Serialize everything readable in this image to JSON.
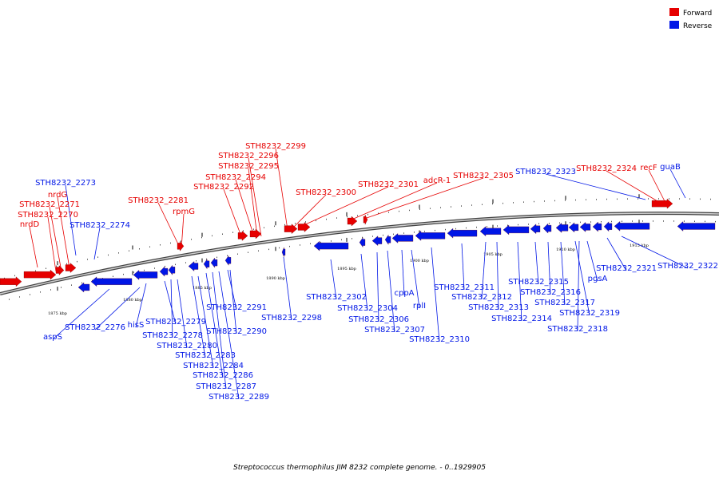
{
  "legend": {
    "forward_label": "Forward",
    "reverse_label": "Reverse",
    "forward_color": "#e60000",
    "reverse_color": "#0016e6"
  },
  "caption": "Streptococcus thermophilus JIM 8232 complete genome. - 0..1929905",
  "ticks": [
    "1875 kbp",
    "1880 kbp",
    "1885 kbp",
    "1890 kbp",
    "1895 kbp",
    "1900 kbp",
    "1905 kbp",
    "1910 kbp",
    "1915 kbp"
  ],
  "forward_genes": [
    "nrdD",
    "STH8232_2270",
    "STH8232_2271",
    "nrdG",
    "STH8232_2281",
    "rpmG",
    "STH8232_2292",
    "STH8232_2294",
    "STH8232_2295",
    "STH8232_2296",
    "STH8232_2299",
    "STH8232_2300",
    "STH8232_2301",
    "adcR-1",
    "STH8232_2305",
    "STH8232_2324",
    "recF"
  ],
  "reverse_genes": [
    "STH8232_2273",
    "STH8232_2274",
    "aspS",
    "STH8232_2276",
    "hisS",
    "STH8232_2279",
    "STH8232_2278",
    "STH8232_2280",
    "STH8232_2283",
    "STH8232_2284",
    "STH8232_2286",
    "STH8232_2287",
    "STH8232_2289",
    "STH8232_2291",
    "STH8232_2290",
    "STH8232_2298",
    "STH8232_2302",
    "STH8232_2304",
    "STH8232_2306",
    "STH8232_2307",
    "cppA",
    "rplI",
    "STH8232_2310",
    "STH8232_2311",
    "STH8232_2312",
    "STH8232_2313",
    "STH8232_2314",
    "STH8232_2315",
    "STH8232_2316",
    "STH8232_2317",
    "STH8232_2319",
    "STH8232_2318",
    "pgsA",
    "STH8232_2321",
    "STH8232_2322",
    "STH8232_2323",
    "guaB"
  ]
}
